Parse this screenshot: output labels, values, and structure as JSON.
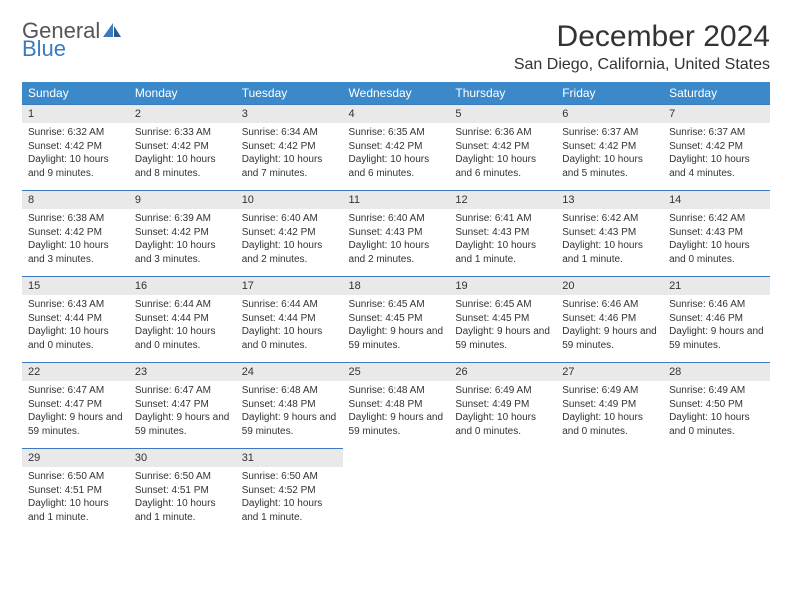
{
  "logo": {
    "general": "General",
    "blue": "Blue"
  },
  "title": "December 2024",
  "location": "San Diego, California, United States",
  "header_bg": "#3b89c9",
  "accent": "#3b7bbf",
  "weekdays": [
    "Sunday",
    "Monday",
    "Tuesday",
    "Wednesday",
    "Thursday",
    "Friday",
    "Saturday"
  ],
  "weeks": [
    {
      "nums": [
        "1",
        "2",
        "3",
        "4",
        "5",
        "6",
        "7"
      ],
      "cells": [
        {
          "sunrise": "Sunrise: 6:32 AM",
          "sunset": "Sunset: 4:42 PM",
          "day": "Daylight: 10 hours and 9 minutes."
        },
        {
          "sunrise": "Sunrise: 6:33 AM",
          "sunset": "Sunset: 4:42 PM",
          "day": "Daylight: 10 hours and 8 minutes."
        },
        {
          "sunrise": "Sunrise: 6:34 AM",
          "sunset": "Sunset: 4:42 PM",
          "day": "Daylight: 10 hours and 7 minutes."
        },
        {
          "sunrise": "Sunrise: 6:35 AM",
          "sunset": "Sunset: 4:42 PM",
          "day": "Daylight: 10 hours and 6 minutes."
        },
        {
          "sunrise": "Sunrise: 6:36 AM",
          "sunset": "Sunset: 4:42 PM",
          "day": "Daylight: 10 hours and 6 minutes."
        },
        {
          "sunrise": "Sunrise: 6:37 AM",
          "sunset": "Sunset: 4:42 PM",
          "day": "Daylight: 10 hours and 5 minutes."
        },
        {
          "sunrise": "Sunrise: 6:37 AM",
          "sunset": "Sunset: 4:42 PM",
          "day": "Daylight: 10 hours and 4 minutes."
        }
      ]
    },
    {
      "nums": [
        "8",
        "9",
        "10",
        "11",
        "12",
        "13",
        "14"
      ],
      "cells": [
        {
          "sunrise": "Sunrise: 6:38 AM",
          "sunset": "Sunset: 4:42 PM",
          "day": "Daylight: 10 hours and 3 minutes."
        },
        {
          "sunrise": "Sunrise: 6:39 AM",
          "sunset": "Sunset: 4:42 PM",
          "day": "Daylight: 10 hours and 3 minutes."
        },
        {
          "sunrise": "Sunrise: 6:40 AM",
          "sunset": "Sunset: 4:42 PM",
          "day": "Daylight: 10 hours and 2 minutes."
        },
        {
          "sunrise": "Sunrise: 6:40 AM",
          "sunset": "Sunset: 4:43 PM",
          "day": "Daylight: 10 hours and 2 minutes."
        },
        {
          "sunrise": "Sunrise: 6:41 AM",
          "sunset": "Sunset: 4:43 PM",
          "day": "Daylight: 10 hours and 1 minute."
        },
        {
          "sunrise": "Sunrise: 6:42 AM",
          "sunset": "Sunset: 4:43 PM",
          "day": "Daylight: 10 hours and 1 minute."
        },
        {
          "sunrise": "Sunrise: 6:42 AM",
          "sunset": "Sunset: 4:43 PM",
          "day": "Daylight: 10 hours and 0 minutes."
        }
      ]
    },
    {
      "nums": [
        "15",
        "16",
        "17",
        "18",
        "19",
        "20",
        "21"
      ],
      "cells": [
        {
          "sunrise": "Sunrise: 6:43 AM",
          "sunset": "Sunset: 4:44 PM",
          "day": "Daylight: 10 hours and 0 minutes."
        },
        {
          "sunrise": "Sunrise: 6:44 AM",
          "sunset": "Sunset: 4:44 PM",
          "day": "Daylight: 10 hours and 0 minutes."
        },
        {
          "sunrise": "Sunrise: 6:44 AM",
          "sunset": "Sunset: 4:44 PM",
          "day": "Daylight: 10 hours and 0 minutes."
        },
        {
          "sunrise": "Sunrise: 6:45 AM",
          "sunset": "Sunset: 4:45 PM",
          "day": "Daylight: 9 hours and 59 minutes."
        },
        {
          "sunrise": "Sunrise: 6:45 AM",
          "sunset": "Sunset: 4:45 PM",
          "day": "Daylight: 9 hours and 59 minutes."
        },
        {
          "sunrise": "Sunrise: 6:46 AM",
          "sunset": "Sunset: 4:46 PM",
          "day": "Daylight: 9 hours and 59 minutes."
        },
        {
          "sunrise": "Sunrise: 6:46 AM",
          "sunset": "Sunset: 4:46 PM",
          "day": "Daylight: 9 hours and 59 minutes."
        }
      ]
    },
    {
      "nums": [
        "22",
        "23",
        "24",
        "25",
        "26",
        "27",
        "28"
      ],
      "cells": [
        {
          "sunrise": "Sunrise: 6:47 AM",
          "sunset": "Sunset: 4:47 PM",
          "day": "Daylight: 9 hours and 59 minutes."
        },
        {
          "sunrise": "Sunrise: 6:47 AM",
          "sunset": "Sunset: 4:47 PM",
          "day": "Daylight: 9 hours and 59 minutes."
        },
        {
          "sunrise": "Sunrise: 6:48 AM",
          "sunset": "Sunset: 4:48 PM",
          "day": "Daylight: 9 hours and 59 minutes."
        },
        {
          "sunrise": "Sunrise: 6:48 AM",
          "sunset": "Sunset: 4:48 PM",
          "day": "Daylight: 9 hours and 59 minutes."
        },
        {
          "sunrise": "Sunrise: 6:49 AM",
          "sunset": "Sunset: 4:49 PM",
          "day": "Daylight: 10 hours and 0 minutes."
        },
        {
          "sunrise": "Sunrise: 6:49 AM",
          "sunset": "Sunset: 4:49 PM",
          "day": "Daylight: 10 hours and 0 minutes."
        },
        {
          "sunrise": "Sunrise: 6:49 AM",
          "sunset": "Sunset: 4:50 PM",
          "day": "Daylight: 10 hours and 0 minutes."
        }
      ]
    },
    {
      "nums": [
        "29",
        "30",
        "31",
        "",
        "",
        "",
        ""
      ],
      "cells": [
        {
          "sunrise": "Sunrise: 6:50 AM",
          "sunset": "Sunset: 4:51 PM",
          "day": "Daylight: 10 hours and 1 minute."
        },
        {
          "sunrise": "Sunrise: 6:50 AM",
          "sunset": "Sunset: 4:51 PM",
          "day": "Daylight: 10 hours and 1 minute."
        },
        {
          "sunrise": "Sunrise: 6:50 AM",
          "sunset": "Sunset: 4:52 PM",
          "day": "Daylight: 10 hours and 1 minute."
        },
        null,
        null,
        null,
        null
      ]
    }
  ]
}
